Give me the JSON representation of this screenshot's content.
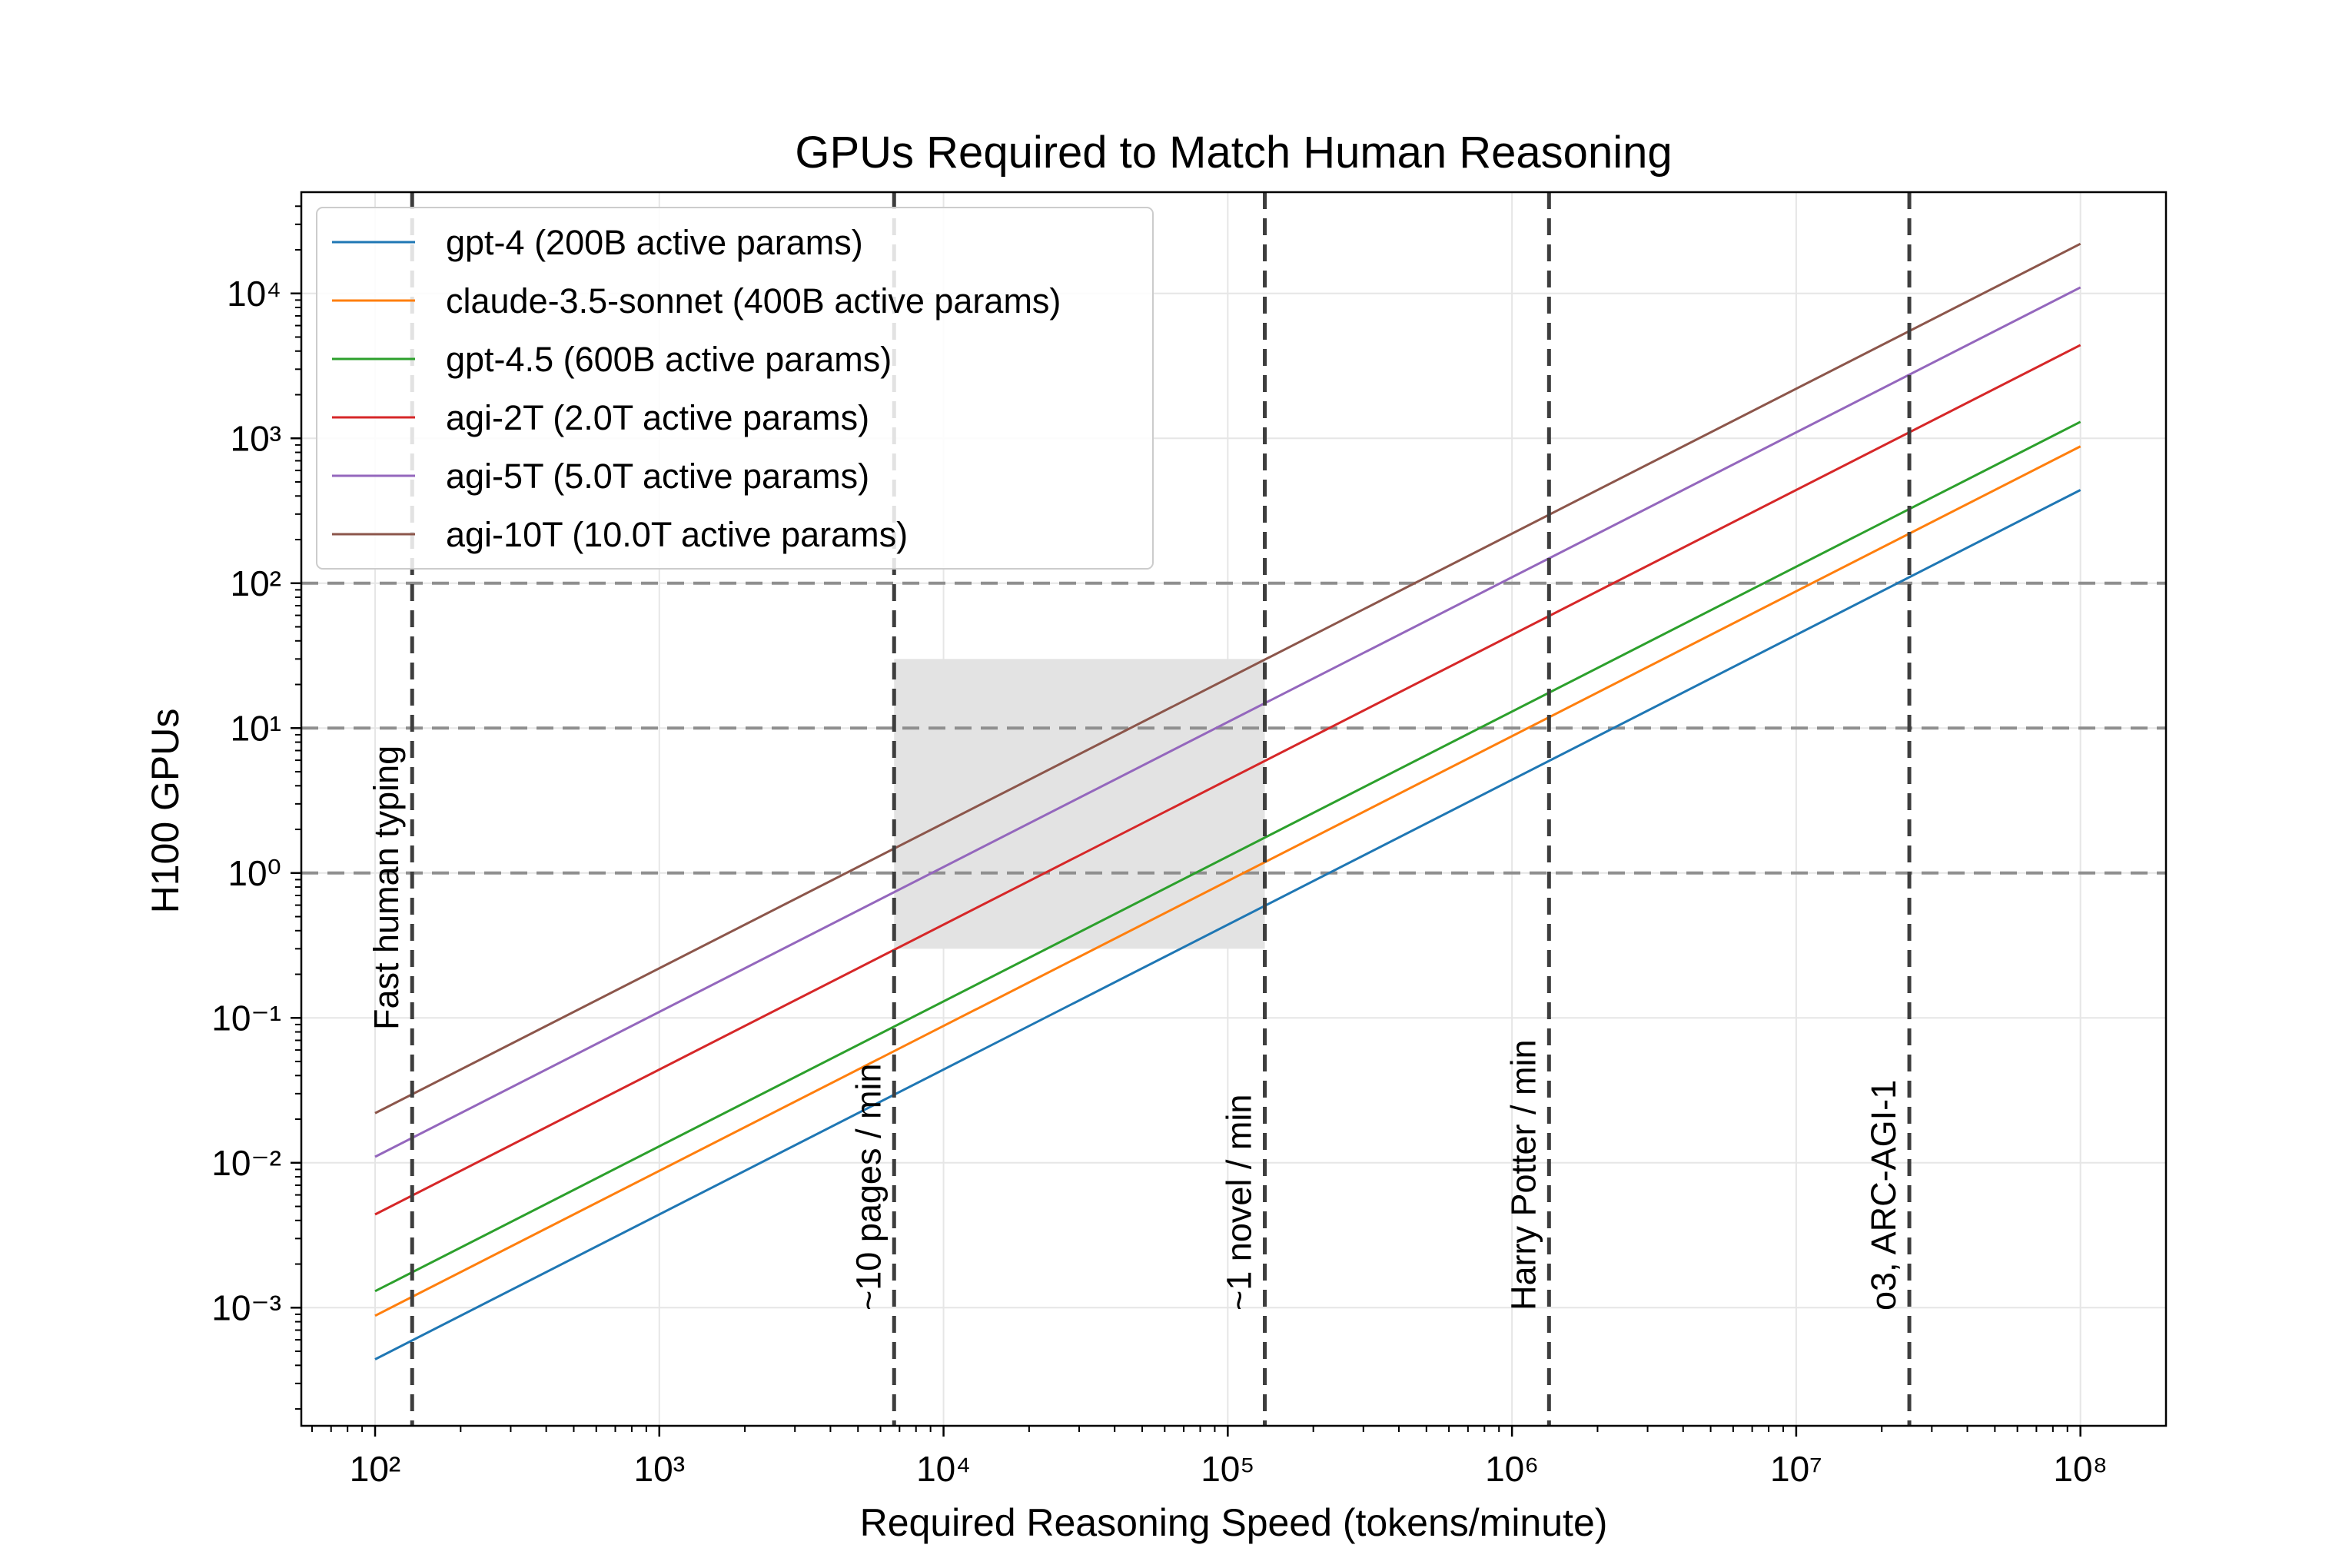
{
  "chart_data": {
    "type": "line",
    "title": "GPUs Required to Match Human Reasoning",
    "xlabel": "Required Reasoning Speed (tokens/minute)",
    "ylabel": "H100 GPUs",
    "xscale": "log",
    "yscale": "log",
    "xlim": [
      55,
      200000000
    ],
    "ylim": [
      0.000153,
      50000
    ],
    "grid": true,
    "legend_position": "top-left",
    "x_ticks": [
      {
        "value": 100,
        "label": "10²"
      },
      {
        "value": 1000,
        "label": "10³"
      },
      {
        "value": 10000,
        "label": "10⁴"
      },
      {
        "value": 100000,
        "label": "10⁵"
      },
      {
        "value": 1000000,
        "label": "10⁶"
      },
      {
        "value": 10000000,
        "label": "10⁷"
      },
      {
        "value": 100000000,
        "label": "10⁸"
      }
    ],
    "y_ticks": [
      {
        "value": 0.001,
        "label": "10⁻³"
      },
      {
        "value": 0.01,
        "label": "10⁻²"
      },
      {
        "value": 0.1,
        "label": "10⁻¹"
      },
      {
        "value": 1,
        "label": "10⁰"
      },
      {
        "value": 10,
        "label": "10¹"
      },
      {
        "value": 100,
        "label": "10²"
      },
      {
        "value": 1000,
        "label": "10³"
      },
      {
        "value": 10000,
        "label": "10⁴"
      }
    ],
    "series": [
      {
        "name": "gpt-4 (200B active params)",
        "color": "#1f77b4",
        "x": [
          100,
          100000000
        ],
        "y": [
          0.00044,
          440
        ]
      },
      {
        "name": "claude-3.5-sonnet (400B active params)",
        "color": "#ff7f0e",
        "x": [
          100,
          100000000
        ],
        "y": [
          0.00088,
          880
        ]
      },
      {
        "name": "gpt-4.5 (600B active params)",
        "color": "#2ca02c",
        "x": [
          100,
          100000000
        ],
        "y": [
          0.0013,
          1300
        ]
      },
      {
        "name": "agi-2T (2.0T active params)",
        "color": "#d62728",
        "x": [
          100,
          100000000
        ],
        "y": [
          0.0044,
          4400
        ]
      },
      {
        "name": "agi-5T (5.0T active params)",
        "color": "#9467bd",
        "x": [
          100,
          100000000
        ],
        "y": [
          0.011,
          11000
        ]
      },
      {
        "name": "agi-10T (10.0T active params)",
        "color": "#8c564b",
        "x": [
          100,
          100000000
        ],
        "y": [
          0.022,
          22000
        ]
      }
    ],
    "vertical_lines": [
      {
        "x": 135,
        "label": "Fast human typing"
      },
      {
        "x": 6700,
        "label": "~10 pages / min"
      },
      {
        "x": 135000,
        "label": "~1 novel / min"
      },
      {
        "x": 1350000,
        "label": "Harry Potter / min"
      },
      {
        "x": 25000000,
        "label": "o3, ARC-AGI-1"
      }
    ],
    "horizontal_lines": [
      1,
      10,
      100
    ],
    "shaded_region": {
      "x": [
        6700,
        135000
      ],
      "y": [
        0.3,
        30
      ],
      "color": "#e3e3e3"
    }
  }
}
